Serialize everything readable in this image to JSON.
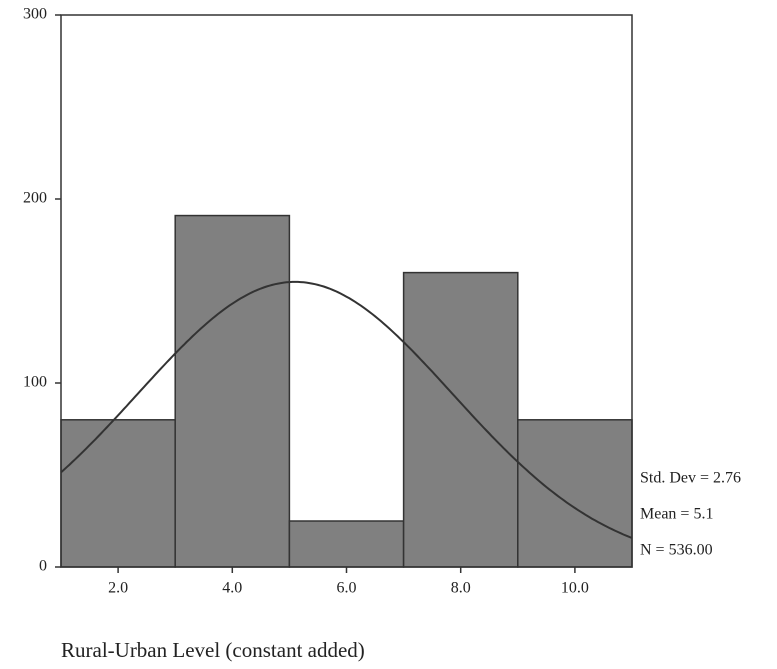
{
  "chart_data": {
    "type": "histogram",
    "x_label": "Rural-Urban Level (constant added)",
    "bins": [
      1,
      3,
      5,
      7,
      9,
      11
    ],
    "counts": [
      80,
      191,
      25,
      160,
      80
    ],
    "color": "#808080",
    "xlim": [
      1,
      11
    ],
    "ylim": [
      0,
      300
    ],
    "xticks": [
      {
        "value": 2,
        "label": "2.0"
      },
      {
        "value": 4,
        "label": "4.0"
      },
      {
        "value": 6,
        "label": "6.0"
      },
      {
        "value": 8,
        "label": "8.0"
      },
      {
        "value": 10,
        "label": "10.0"
      }
    ],
    "yticks": [
      0,
      100,
      200,
      300
    ],
    "stats": [
      {
        "value": 2.76,
        "label": "Std. Dev = 2.76"
      },
      {
        "value": 5.1,
        "label": "Mean = 5.1"
      },
      {
        "value": 536,
        "label": "N = 536.00"
      }
    ],
    "normal_curve": true
  }
}
